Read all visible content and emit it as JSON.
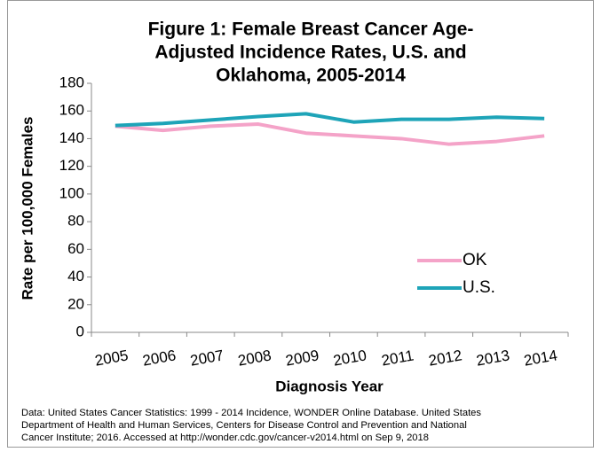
{
  "chart_data": {
    "type": "line",
    "title": [
      "Figure 1: Female Breast Cancer Age-",
      "Adjusted Incidence Rates, U.S. and",
      "Oklahoma, 2005-2014"
    ],
    "x_label": "Diagnosis Year",
    "y_label": "Rate per 100,000 Females",
    "categories": [
      "2005",
      "2006",
      "2007",
      "2008",
      "2009",
      "2010",
      "2011",
      "2012",
      "2013",
      "2014"
    ],
    "series": [
      {
        "name": "OK",
        "color": "#f4a3c8",
        "values": [
          149,
          146,
          149,
          150.5,
          144,
          142,
          140,
          136,
          138,
          142
        ]
      },
      {
        "name": "U.S.",
        "color": "#1ea4b8",
        "values": [
          149.5,
          151,
          153.5,
          156,
          158,
          152,
          154,
          154,
          155.5,
          154.5
        ]
      }
    ],
    "ylim": [
      0,
      180
    ],
    "yticks": [
      0,
      20,
      40,
      60,
      80,
      100,
      120,
      140,
      160,
      180
    ],
    "grid": false,
    "legend": "right",
    "source": [
      "Data: United States Cancer Statistics: 1999 - 2014 Incidence, WONDER Online Database. United States",
      "Department of Health and Human Services, Centers for Disease Control and Prevention and National",
      "Cancer Institute; 2016. Accessed at http://wonder.cdc.gov/cancer-v2014.html on Sep 9, 2018"
    ]
  }
}
